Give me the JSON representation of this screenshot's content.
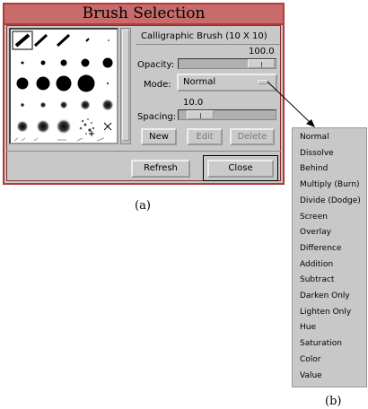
{
  "window": {
    "title": "Brush Selection"
  },
  "brush_panel": {
    "brush_name": "Calligraphic Brush  (10 X 10)",
    "opacity": {
      "label": "Opacity:",
      "value": "100.0",
      "level": 100
    },
    "mode": {
      "label": "Mode:",
      "selected": "Normal"
    },
    "spacing": {
      "label": "Spacing:",
      "value": "10.0",
      "level": 10
    },
    "buttons": {
      "new": "New",
      "edit": "Edit",
      "delete": "Delete"
    }
  },
  "footer": {
    "refresh": "Refresh",
    "close": "Close"
  },
  "mode_menu": {
    "items": [
      "Normal",
      "Dissolve",
      "Behind",
      "Multiply (Burn)",
      "Divide (Dodge)",
      "Screen",
      "Overlay",
      "Difference",
      "Addition",
      "Subtract",
      "Darken Only",
      "Lighten Only",
      "Hue",
      "Saturation",
      "Color",
      "Value"
    ]
  },
  "captions": {
    "a": "(a)",
    "b": "(b)"
  }
}
